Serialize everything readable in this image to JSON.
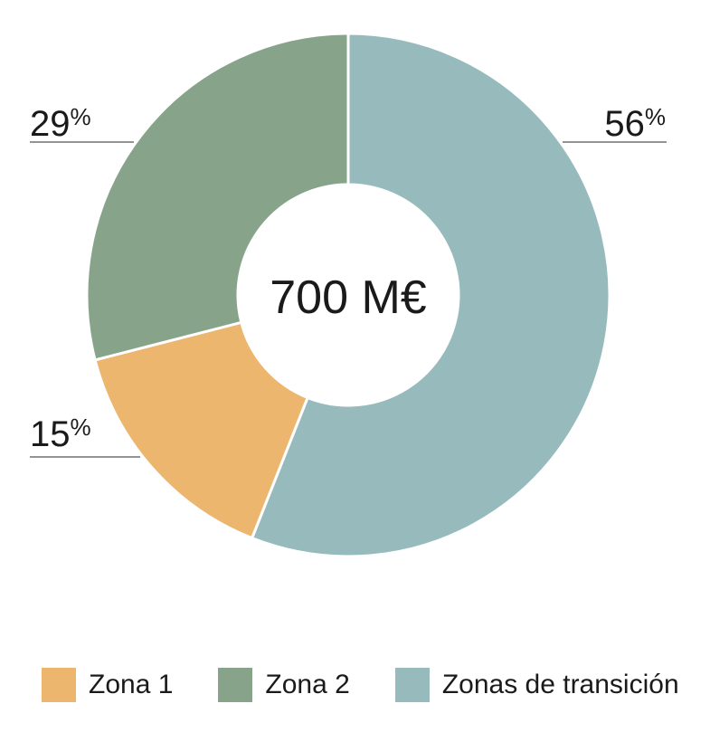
{
  "chart_data": {
    "type": "pie",
    "donut": true,
    "center_label": "700 M€",
    "categories": [
      "Zona 1",
      "Zona 2",
      "Zonas de transición"
    ],
    "values": [
      15,
      29,
      56
    ],
    "labels": [
      "15%",
      "29%",
      "56%"
    ],
    "colors": [
      "#ECB66E",
      "#87A48B",
      "#97BBBD"
    ],
    "title": "",
    "legend_placement": "bottom"
  }
}
